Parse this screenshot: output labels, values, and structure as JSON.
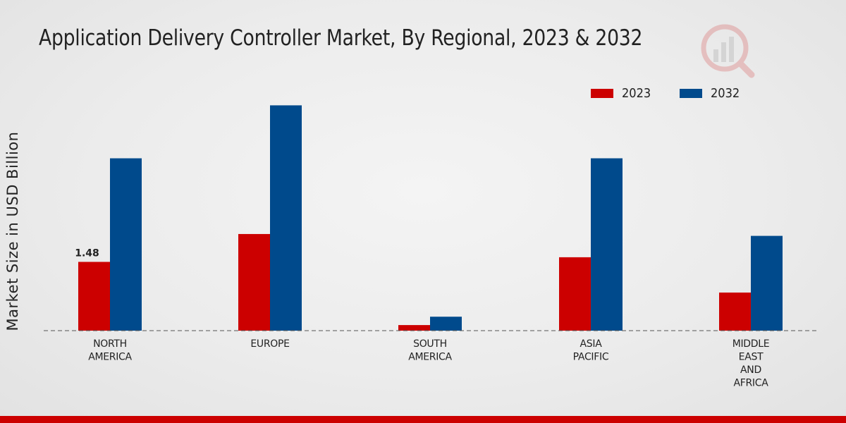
{
  "title": "Application Delivery Controller Market, By Regional, 2023 & 2032",
  "chart_data": {
    "type": "bar",
    "categories": [
      [
        "NORTH",
        "AMERICA"
      ],
      [
        "EUROPE"
      ],
      [
        "SOUTH",
        "AMERICA"
      ],
      [
        "ASIA",
        "PACIFIC"
      ],
      [
        "MIDDLE",
        "EAST",
        "AND",
        "AFRICA"
      ]
    ],
    "series": [
      {
        "name": "2023",
        "color": "#cc0000",
        "values": [
          1.48,
          2.08,
          0.12,
          1.58,
          0.82
        ]
      },
      {
        "name": "2032",
        "color": "#004a8c",
        "values": [
          3.71,
          4.85,
          0.3,
          3.71,
          2.04
        ]
      }
    ],
    "data_labels": [
      {
        "series": 0,
        "index": 0,
        "text": "1.48"
      }
    ],
    "ylabel": "Market Size in USD Billion",
    "xlabel": "",
    "ylim": [
      0,
      5.6
    ],
    "legend": "top-right",
    "baseline": "dashed"
  }
}
